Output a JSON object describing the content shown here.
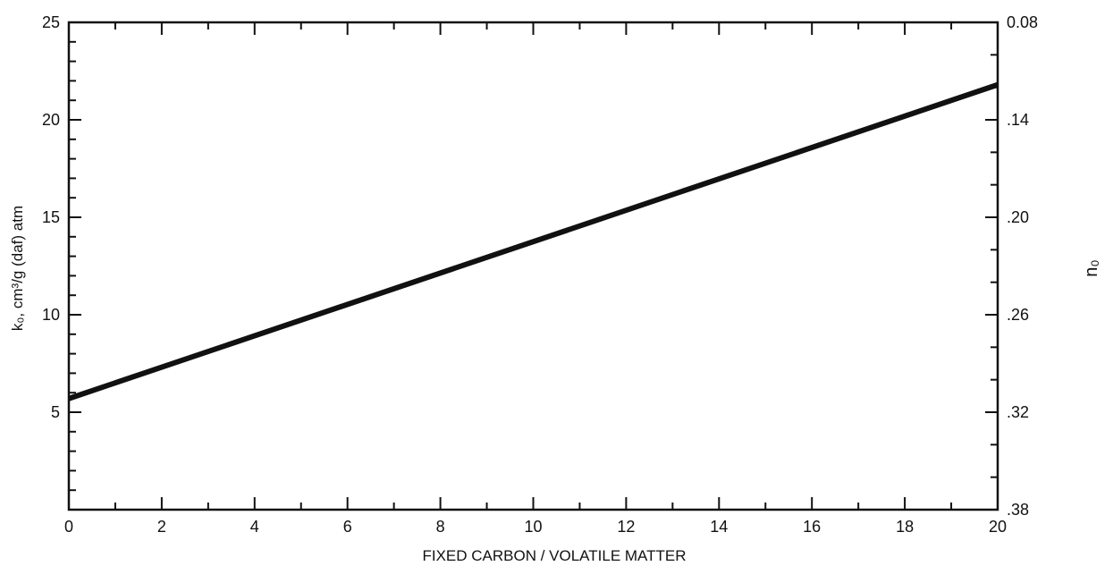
{
  "chart_data": {
    "type": "line",
    "title": "",
    "xlabel": "FIXED CARBON / VOLATILE MATTER",
    "ylabel": "k₀, cm³/g (daf) atm",
    "y2label": "n₀",
    "xlim": [
      0,
      20
    ],
    "ylim": [
      0,
      25
    ],
    "y2lim": [
      0.38,
      0.08
    ],
    "x_ticks": [
      "0",
      "2",
      "4",
      "6",
      "8",
      "10",
      "12",
      "14",
      "16",
      "18",
      "20"
    ],
    "y_ticks": [
      "5",
      "10",
      "15",
      "20",
      "25"
    ],
    "y2_ticks": [
      ".38",
      ".32",
      ".26",
      ".20",
      ".14",
      "0.08"
    ],
    "grid": false,
    "series": [
      {
        "x": [
          0,
          20
        ],
        "y": [
          5.7,
          21.8
        ]
      }
    ]
  }
}
